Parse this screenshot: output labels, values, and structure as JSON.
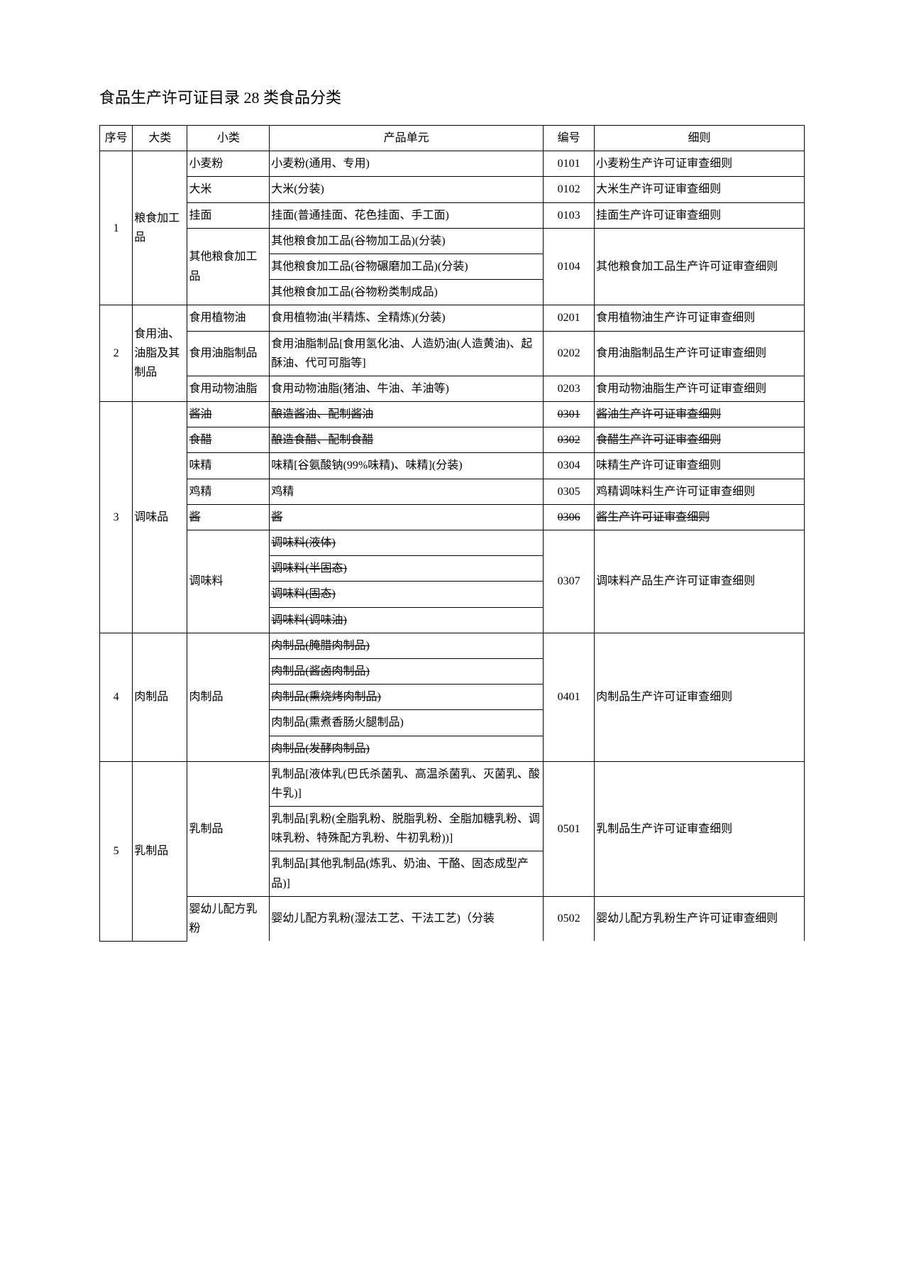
{
  "title": "食品生产许可证目录 28 类食品分类",
  "headers": {
    "seq": "序号",
    "cat": "大类",
    "sub": "小类",
    "prod": "产品单元",
    "code": "编号",
    "rule": "细则"
  },
  "rows": [
    {
      "seq": "1",
      "cat": "粮食加工品",
      "group": [
        {
          "sub": "小麦粉",
          "items": [
            {
              "prod": "小麦粉(通用、专用)",
              "code": "0101",
              "rule": "小麦粉生产许可证审查细则"
            }
          ]
        },
        {
          "sub": "大米",
          "items": [
            {
              "prod": "大米(分装)",
              "code": "0102",
              "rule": "大米生产许可证审查细则"
            }
          ]
        },
        {
          "sub": "挂面",
          "items": [
            {
              "prod": "挂面(普通挂面、花色挂面、手工面)",
              "code": "0103",
              "rule": "挂面生产许可证审查细则"
            }
          ]
        },
        {
          "sub": "其他粮食加工品",
          "items": [
            {
              "prod": "其他粮食加工品(谷物加工品)(分装)",
              "code": "0104",
              "rule": "其他粮食加工品生产许可证审查细则",
              "rowspan": 3
            },
            {
              "prod": "其他粮食加工品(谷物碾磨加工品)(分装)"
            },
            {
              "prod": "其他粮食加工品(谷物粉类制成品)"
            }
          ]
        }
      ]
    },
    {
      "seq": "2",
      "cat": "食用油、油脂及其制品",
      "group": [
        {
          "sub": "食用植物油",
          "items": [
            {
              "prod": "食用植物油(半精炼、全精炼)(分装)",
              "code": "0201",
              "rule": "食用植物油生产许可证审查细则"
            }
          ]
        },
        {
          "sub": "食用油脂制品",
          "items": [
            {
              "prod": "食用油脂制品[食用氢化油、人造奶油(人造黄油)、起酥油、代可可脂等]",
              "code": "0202",
              "rule": "食用油脂制品生产许可证审查细则"
            }
          ]
        },
        {
          "sub": "食用动物油脂",
          "items": [
            {
              "prod": "食用动物油脂(猪油、牛油、羊油等)",
              "code": "0203",
              "rule": "食用动物油脂生产许可证审查细则"
            }
          ]
        }
      ]
    },
    {
      "seq": "3",
      "cat": "调味品",
      "group": [
        {
          "sub": "酱油",
          "struck": true,
          "items": [
            {
              "prod": "酿造酱油、配制酱油",
              "struck": true,
              "code": "0301",
              "codeStruck": true,
              "rule": "酱油生产许可证审查细则",
              "ruleStruck": true
            }
          ]
        },
        {
          "sub": "食醋",
          "struck": true,
          "items": [
            {
              "prod": "酿造食醋、配制食醋",
              "struck": true,
              "code": "0302",
              "codeStruck": true,
              "rule": "食醋生产许可证审查细则",
              "ruleStruck": true
            }
          ]
        },
        {
          "sub": "味精",
          "items": [
            {
              "prod": "味精[谷氨酸钠(99%味精)、味精](分装)",
              "prodStruck": "装)",
              "code": "0304",
              "rule": "味精生产许可证审查细则"
            }
          ]
        },
        {
          "sub": "鸡精",
          "items": [
            {
              "prod": "鸡精",
              "code": "0305",
              "rule": "鸡精调味料生产许可证审查细则",
              "ruleStruckLast": "细则"
            }
          ]
        },
        {
          "sub": "酱",
          "struck": true,
          "items": [
            {
              "prod": "酱",
              "struck": true,
              "code": "0306",
              "codeStruck": true,
              "rule": "酱生产许可证审查细则",
              "ruleStruck": true
            }
          ]
        },
        {
          "sub": "调味料",
          "items": [
            {
              "prod": "调味料(液体)",
              "struck": true,
              "code": "0307",
              "rule": "调味料产品生产许可证审查细则",
              "rowspan": 4
            },
            {
              "prod": "调味料(半固态)",
              "struck": true
            },
            {
              "prod": "调味料(固态)",
              "struck": true
            },
            {
              "prod": "调味料(调味油)",
              "struck": true
            }
          ]
        }
      ]
    },
    {
      "seq": "4",
      "cat": "肉制品",
      "group": [
        {
          "sub": "肉制品",
          "items": [
            {
              "prod": "肉制品(腌腊肉制品)",
              "struck": true,
              "code": "0401",
              "rule": "肉制品生产许可证审查细则",
              "rowspan": 5
            },
            {
              "prod": "肉制品(酱卤肉制品)",
              "struck": true
            },
            {
              "prod": "肉制品(熏烧烤肉制品)",
              "struck": true
            },
            {
              "prod": "肉制品(熏煮香肠火腿制品)"
            },
            {
              "prod": "肉制品(发酵肉制品)",
              "struck": true
            }
          ]
        }
      ]
    },
    {
      "seq": "5",
      "cat": "乳制品",
      "group": [
        {
          "sub": "乳制品",
          "items": [
            {
              "prod": "乳制品[液体乳(巴氏杀菌乳、高温杀菌乳、灭菌乳、酸牛乳)]",
              "prodStruckPart": "菌乳、灭菌乳、酸牛乳)]",
              "code": "0501",
              "rule": "乳制品生产许可证审查细则",
              "rowspan": 3
            },
            {
              "prod": "乳制品[乳粉(全脂乳粉、脱脂乳粉、全脂加糖乳粉、调味乳粉、特殊配方乳粉、牛初乳粉))]",
              "prodStruckPart": "乳粉、牛初乳粉))]"
            },
            {
              "prod": "乳制品[其他乳制品(炼乳、奶油、干酪、固态成型产品)]",
              "prodStruckPart": "酪、固态成型产品)]"
            }
          ]
        },
        {
          "sub": "婴幼儿配方乳粉",
          "items": [
            {
              "prod": "婴幼儿配方乳粉(湿法工艺、干法工艺)（分装",
              "code": "0502",
              "rule": "婴幼儿配方乳粉生产许可证审查细则"
            }
          ]
        }
      ]
    }
  ]
}
